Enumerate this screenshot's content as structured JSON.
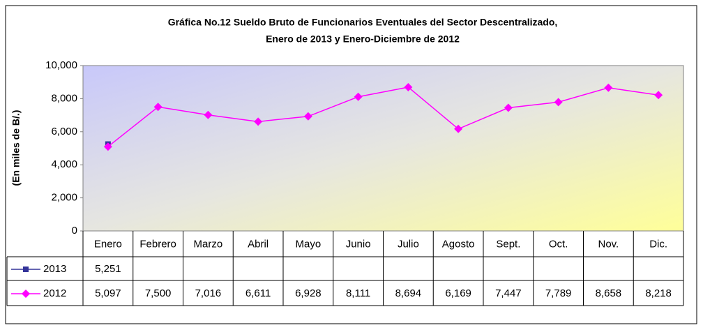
{
  "chart_data": {
    "type": "line",
    "title": "Gráfica No.12 Sueldo Bruto de Funcionarios Eventuales del Sector Descentralizado,",
    "subtitle": "Enero de 2013 y Enero-Diciembre de 2012",
    "y_label": "(En miles de B/.)",
    "categories": [
      "Enero",
      "Febrero",
      "Marzo",
      "Abril",
      "Mayo",
      "Junio",
      "Julio",
      "Agosto",
      "Sept.",
      "Oct.",
      "Nov.",
      "Dic."
    ],
    "series": [
      {
        "name": "2013",
        "color": "#333399",
        "marker": "square",
        "values": [
          5251,
          null,
          null,
          null,
          null,
          null,
          null,
          null,
          null,
          null,
          null,
          null
        ],
        "value_labels": [
          "5,251",
          null,
          null,
          null,
          null,
          null,
          null,
          null,
          null,
          null,
          null,
          null
        ]
      },
      {
        "name": "2012",
        "color": "#ff00ff",
        "marker": "diamond",
        "values": [
          5097,
          7500,
          7016,
          6611,
          6928,
          8111,
          8694,
          6169,
          7447,
          7789,
          8658,
          8218
        ],
        "value_labels": [
          "5,097",
          "7,500",
          "7,016",
          "6,611",
          "6,928",
          "8,111",
          "8,694",
          "6,169",
          "7,447",
          "7,789",
          "8,658",
          "8,218"
        ]
      }
    ],
    "ylim": [
      0,
      10000
    ],
    "yticks": [
      0,
      {
        "value": 2000,
        "label": "2,000"
      },
      {
        "value": 4000,
        "label": "4,000"
      },
      {
        "value": 6000,
        "label": "6,000"
      },
      {
        "value": 8000,
        "label": "8,000"
      },
      {
        "value": 10000,
        "label": "10,000"
      }
    ],
    "grid": false
  }
}
